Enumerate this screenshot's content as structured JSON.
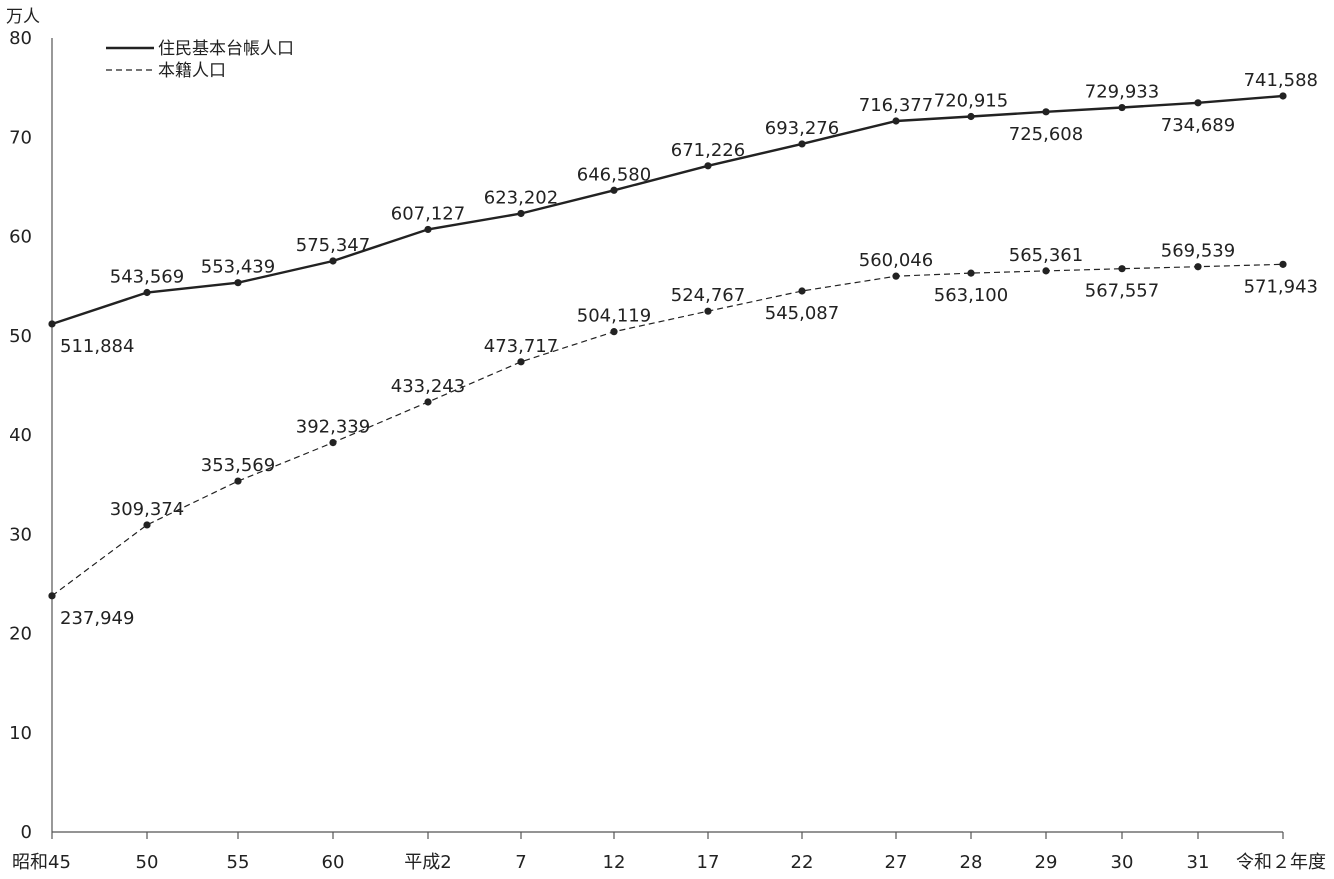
{
  "chart_data": {
    "type": "line",
    "yunit": "万人",
    "ylim": [
      0,
      80
    ],
    "yticks": [
      0,
      10,
      20,
      30,
      40,
      50,
      60,
      70,
      80
    ],
    "grid": false,
    "legend_position": "top-left",
    "categories": [
      "昭和45",
      "50",
      "55",
      "60",
      "平成2",
      "7",
      "12",
      "17",
      "22",
      "27",
      "28",
      "29",
      "30",
      "31",
      "令和２年度"
    ],
    "series": [
      {
        "name": "住民基本台帳人口",
        "style": "solid",
        "color": "#222222",
        "values": [
          511884,
          543569,
          553439,
          575347,
          607127,
          623202,
          646580,
          671226,
          693276,
          716377,
          720915,
          725608,
          729933,
          734689,
          741588
        ],
        "labels": [
          "511,884",
          "543,569",
          "553,439",
          "575,347",
          "607,127",
          "623,202",
          "646,580",
          "671,226",
          "693,276",
          "716,377",
          "720,915",
          "725,608",
          "729,933",
          "734,689",
          "741,588"
        ]
      },
      {
        "name": "本籍人口",
        "style": "dashed",
        "color": "#222222",
        "values": [
          237949,
          309374,
          353569,
          392339,
          433243,
          473717,
          504119,
          524767,
          545087,
          560046,
          563100,
          565361,
          567557,
          569539,
          571943
        ],
        "labels": [
          "237,949",
          "309,374",
          "353,569",
          "392,339",
          "433,243",
          "473,717",
          "504,119",
          "524,767",
          "545,087",
          "560,046",
          "563,100",
          "565,361",
          "567,557",
          "569,539",
          "571,943"
        ]
      }
    ]
  }
}
